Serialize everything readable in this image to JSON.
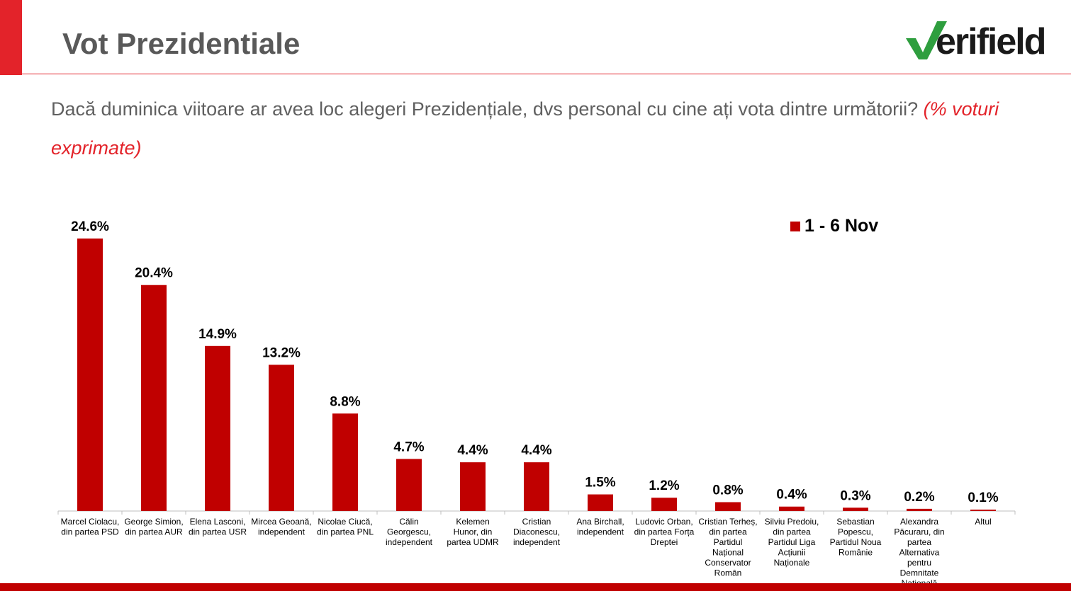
{
  "header": {
    "title": "Vot Prezidentiale",
    "logo_text": "verifield",
    "accent_color": "#e3232a",
    "logo_color": "#1a1a1a",
    "logo_check_color": "#2e9e3e"
  },
  "question": {
    "text": "Dacă duminica viitoare ar avea loc alegeri Prezidențiale, dvs personal cu cine ați vota dintre următorii? ",
    "note": "(% voturi exprimate)"
  },
  "chart_data": {
    "type": "bar",
    "title": "",
    "xlabel": "",
    "ylabel": "",
    "ylim": [
      0,
      26
    ],
    "grid": false,
    "legend_position": "top-right",
    "bar_color": "#c00000",
    "categories": [
      "Marcel Ciolacu, din partea PSD",
      "George Simion, din partea AUR",
      "Elena Lasconi, din partea USR",
      "Mircea Geoană, independent",
      "Nicolae Ciucă, din partea PNL",
      "Călin Georgescu, independent",
      "Kelemen Hunor, din partea UDMR",
      "Cristian Diaconescu, independent",
      "Ana Birchall, independent",
      "Ludovic Orban, din partea Forța Dreptei",
      "Cristian Terheș, din partea Partidul Național Conservator Român",
      "Silviu Predoiu, din partea Partidul Liga Acțiunii Naționale",
      "Sebastian Popescu, Partidul Noua Românie",
      "Alexandra Păcuraru, din partea Alternativa pentru Demnitate Națională",
      "Altul"
    ],
    "series": [
      {
        "name": "1 - 6 Nov",
        "values": [
          24.6,
          20.4,
          14.9,
          13.2,
          8.8,
          4.7,
          4.4,
          4.4,
          1.5,
          1.2,
          0.8,
          0.4,
          0.3,
          0.2,
          0.1
        ]
      }
    ],
    "data_labels": [
      "24.6%",
      "20.4%",
      "14.9%",
      "13.2%",
      "8.8%",
      "4.7%",
      "4.4%",
      "4.4%",
      "1.5%",
      "1.2%",
      "0.8%",
      "0.4%",
      "0.3%",
      "0.2%",
      "0.1%"
    ],
    "category_labels": [
      [
        "Marcel Ciolacu,",
        "din partea PSD"
      ],
      [
        "George Simion,",
        "din partea AUR"
      ],
      [
        "Elena Lasconi,",
        "din partea USR"
      ],
      [
        "Mircea Geoană,",
        "independent"
      ],
      [
        "Nicolae Ciucă,",
        "din partea PNL"
      ],
      [
        "Călin",
        "Georgescu,",
        "independent"
      ],
      [
        "Kelemen",
        "Hunor, din",
        "partea UDMR"
      ],
      [
        "Cristian",
        "Diaconescu,",
        "independent"
      ],
      [
        "Ana Birchall,",
        "independent"
      ],
      [
        "Ludovic Orban,",
        "din partea Forța",
        "Dreptei"
      ],
      [
        "Cristian Terheș,",
        "din partea",
        "Partidul",
        "Național",
        "Conservator",
        "Român"
      ],
      [
        "Silviu Predoiu,",
        "din partea",
        "Partidul Liga",
        "Acțiunii",
        "Naționale"
      ],
      [
        "Sebastian",
        "Popescu,",
        "Partidul Noua",
        "Românie"
      ],
      [
        "Alexandra",
        "Păcuraru, din",
        "partea",
        "Alternativa",
        "pentru",
        "Demnitate",
        "Națională"
      ],
      [
        "Altul"
      ]
    ]
  }
}
